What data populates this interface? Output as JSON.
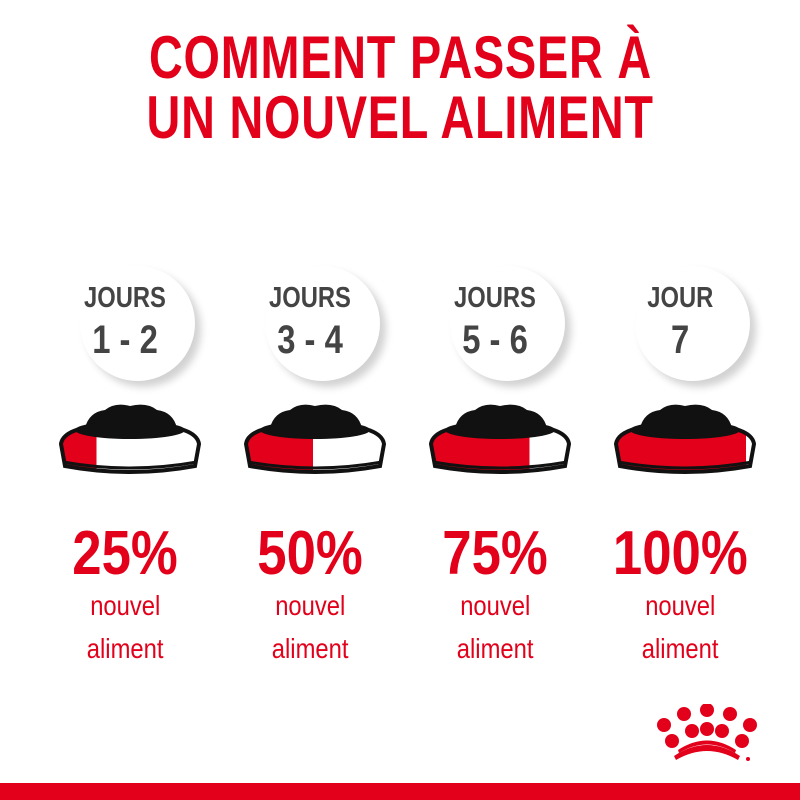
{
  "title": {
    "line1": "COMMENT PASSER À",
    "line2": "UN NOUVEL ALIMENT"
  },
  "colors": {
    "brand_red": "#e2001a",
    "text_gray": "#444444"
  },
  "steps": [
    {
      "label": "JOURS",
      "days": "1 - 2",
      "percent": "25%",
      "new_food_fraction": 0.25,
      "caption1": "nouvel",
      "caption2": "aliment"
    },
    {
      "label": "JOURS",
      "days": "3 - 4",
      "percent": "50%",
      "new_food_fraction": 0.5,
      "caption1": "nouvel",
      "caption2": "aliment"
    },
    {
      "label": "JOURS",
      "days": "5 - 6",
      "percent": "75%",
      "new_food_fraction": 0.75,
      "caption1": "nouvel",
      "caption2": "aliment"
    },
    {
      "label": "JOUR",
      "days": "7",
      "percent": "100%",
      "new_food_fraction": 1.0,
      "caption1": "nouvel",
      "caption2": "aliment"
    }
  ],
  "logo": {
    "icon": "royal-canin-crown-icon"
  }
}
